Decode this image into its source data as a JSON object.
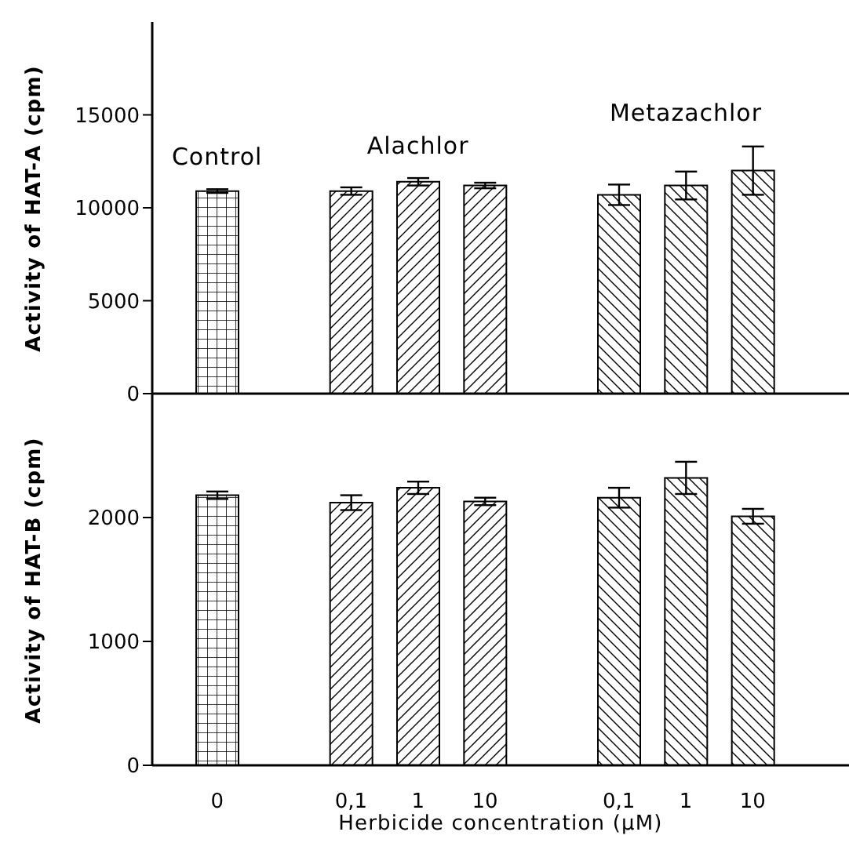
{
  "chart_data": [
    {
      "type": "bar",
      "ylabel": "Activity of HAT-A (cpm)",
      "categories": [
        "0",
        null,
        "0,1",
        "1",
        "10",
        null,
        "0,1",
        "1",
        "10"
      ],
      "series": [
        {
          "name": "Control",
          "color": "#000000",
          "values": [
            10900,
            null,
            null,
            null,
            null,
            null,
            null,
            null,
            null
          ],
          "errors": [
            100,
            null,
            null,
            null,
            null,
            null,
            null,
            null,
            null
          ]
        },
        {
          "name": "Alachlor",
          "color": "#000000",
          "values": [
            null,
            null,
            10900,
            11400,
            11200,
            null,
            null,
            null,
            null
          ],
          "errors": [
            null,
            null,
            200,
            200,
            150,
            null,
            null,
            null,
            null
          ]
        },
        {
          "name": "Metazachlor",
          "color": "#000000",
          "values": [
            null,
            null,
            null,
            null,
            null,
            null,
            10700,
            11200,
            12000
          ],
          "errors": [
            null,
            null,
            null,
            null,
            null,
            null,
            550,
            750,
            1300
          ]
        }
      ],
      "ylim": [
        0,
        20000
      ],
      "yticks": [
        0,
        5000,
        10000,
        15000
      ],
      "tick_labels": "y",
      "legend": false,
      "grid": false
    },
    {
      "type": "bar",
      "ylabel": "Activity of HAT-B (cpm)",
      "xlabel": "Herbicide concentration (μM)",
      "categories": [
        "0",
        null,
        "0,1",
        "1",
        "10",
        null,
        "0,1",
        "1",
        "10"
      ],
      "series": [
        {
          "color": "#000000",
          "values": [
            2180,
            null,
            null,
            null,
            null,
            null,
            null,
            null,
            null
          ],
          "errors": [
            30,
            null,
            null,
            null,
            null,
            null,
            null,
            null,
            null
          ]
        },
        {
          "color": "#000000",
          "values": [
            null,
            null,
            2120,
            2240,
            2130,
            null,
            null,
            null,
            null
          ],
          "errors": [
            null,
            null,
            60,
            50,
            30,
            null,
            null,
            null,
            null
          ]
        },
        {
          "color": "#000000",
          "values": [
            null,
            null,
            null,
            null,
            null,
            null,
            2160,
            2320,
            2010
          ],
          "errors": [
            null,
            null,
            null,
            null,
            null,
            null,
            80,
            130,
            60
          ]
        }
      ],
      "ylim": [
        0,
        3000
      ],
      "yticks": [
        0,
        1000,
        2000
      ],
      "legend": false,
      "grid": false
    }
  ]
}
